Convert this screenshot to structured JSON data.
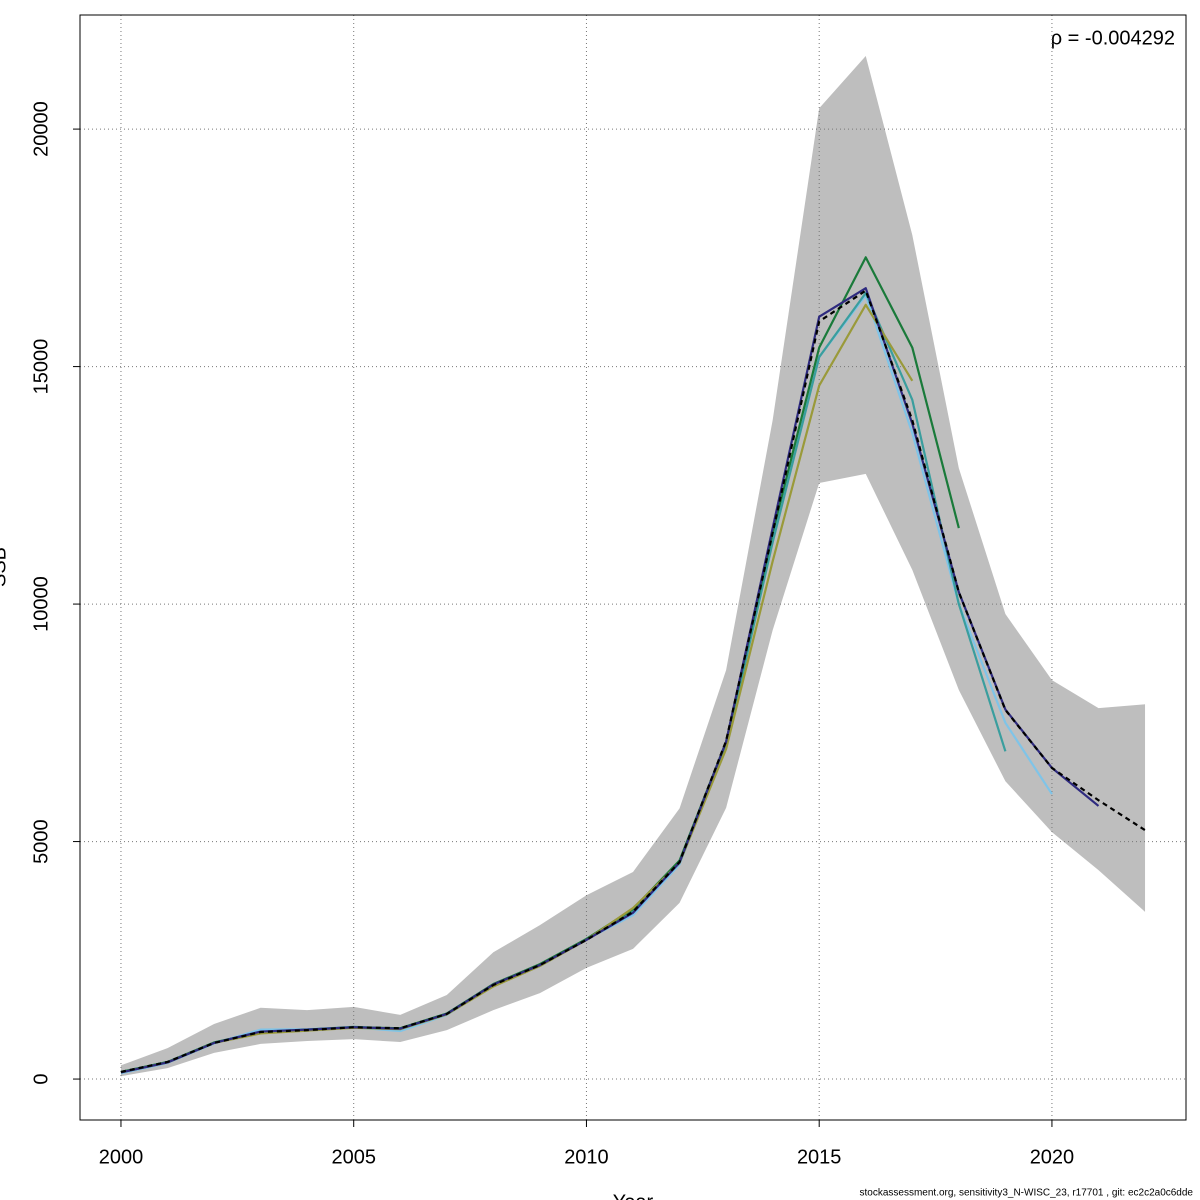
{
  "chart_data": {
    "type": "line",
    "x_label": "Year",
    "y_label": "SSB",
    "annotation": "ρ = -0.004292",
    "caption": "stockassessment.org, sensitivity3_N-WISC_23, r17701 , git: ec2c2a0c6dde",
    "x": [
      2000,
      2001,
      2002,
      2003,
      2004,
      2005,
      2006,
      2007,
      2008,
      2009,
      2010,
      2011,
      2012,
      2013,
      2014,
      2015,
      2016,
      2017,
      2018,
      2019,
      2020,
      2021,
      2022
    ],
    "xlim": [
      1999.12,
      2022.88
    ],
    "xticks": [
      2000,
      2005,
      2010,
      2015,
      2020
    ],
    "ylim": [
      -862,
      22402
    ],
    "yticks": [
      0,
      5000,
      10000,
      15000,
      20000
    ],
    "grid": true,
    "band": {
      "color": "#bebebe",
      "upper": [
        290,
        650,
        1160,
        1500,
        1450,
        1520,
        1350,
        1770,
        2670,
        3240,
        3870,
        4360,
        5700,
        8610,
        13870,
        20440,
        21540,
        17770,
        12860,
        9790,
        8400,
        7810,
        7890
      ],
      "lower": [
        60,
        230,
        550,
        740,
        800,
        840,
        780,
        1030,
        1450,
        1810,
        2340,
        2740,
        3710,
        5710,
        9450,
        12550,
        12740,
        10720,
        8190,
        6270,
        5200,
        4400,
        3520
      ]
    },
    "series": [
      {
        "color": "#7fc4e8",
        "values": [
          120,
          340,
          750,
          1040,
          1050,
          1090,
          1010,
          1350,
          1980,
          2380,
          2940,
          3450,
          4520,
          7050,
          11400,
          15200,
          16500,
          13600,
          10000,
          7500,
          6000,
          null,
          null
        ]
      },
      {
        "color": "#3a9e9e",
        "values": [
          150,
          360,
          770,
          990,
          1040,
          1100,
          1060,
          1380,
          1990,
          2400,
          2950,
          3550,
          4580,
          7000,
          11300,
          15200,
          16550,
          14300,
          10000,
          6900,
          null,
          null,
          null
        ]
      },
      {
        "color": "#1a7a3a",
        "values": [
          150,
          360,
          770,
          980,
          1040,
          1090,
          1070,
          1380,
          2000,
          2420,
          2950,
          3580,
          4600,
          7100,
          11500,
          15400,
          17300,
          15400,
          11600,
          null,
          null,
          null,
          null
        ]
      },
      {
        "color": "#9a9a3a",
        "values": [
          140,
          350,
          760,
          960,
          1020,
          1080,
          1050,
          1360,
          1950,
          2380,
          2930,
          3600,
          4550,
          6950,
          10900,
          14600,
          16300,
          14700,
          null,
          null,
          null,
          null,
          null
        ]
      },
      {
        "color": "#2e2a7f",
        "values": [
          140,
          350,
          760,
          1000,
          1040,
          1090,
          1060,
          1370,
          1990,
          2400,
          2930,
          3500,
          4560,
          7100,
          11600,
          16050,
          16650,
          13800,
          10250,
          7780,
          6550,
          5750,
          null
        ]
      },
      {
        "color": "#000000",
        "dashed": true,
        "values": [
          150,
          360,
          760,
          990,
          1030,
          1090,
          1070,
          1370,
          1980,
          2400,
          2930,
          3520,
          4570,
          7120,
          11500,
          15950,
          16600,
          13870,
          10250,
          7770,
          6550,
          5870,
          5240
        ]
      }
    ]
  }
}
